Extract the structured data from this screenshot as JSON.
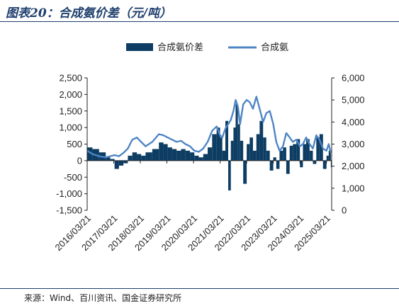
{
  "title": "图表20：合成氨价差（元/吨）",
  "source": "来源：Wind、百川资讯、国金证券研究所",
  "colors": {
    "bar": "#0d3d63",
    "line": "#4f86c6",
    "title": "#1f3f6e",
    "axis": "#222222"
  },
  "chart_data": {
    "type": "bar+line",
    "title": "",
    "legend": {
      "position": "top-center",
      "items": [
        "合成氨价差",
        "合成氨"
      ]
    },
    "left_axis": {
      "ylim": [
        -1500,
        2500
      ],
      "ticks": [
        -1500,
        -1000,
        -500,
        0,
        500,
        1000,
        1500,
        2000,
        2500
      ],
      "tick_labels": [
        "-1,500",
        "-1,000",
        "-500",
        "0",
        "500",
        "1,000",
        "1,500",
        "2,000",
        "2,500"
      ]
    },
    "right_axis": {
      "ylim": [
        0,
        6000
      ],
      "ticks": [
        0,
        1000,
        2000,
        3000,
        4000,
        5000,
        6000
      ],
      "tick_labels": [
        "0",
        "1,000",
        "2,000",
        "3,000",
        "4,000",
        "5,000",
        "6,000"
      ]
    },
    "x_axis": {
      "start": "2016/03/21",
      "end": "2025/05/31",
      "tick_labels": [
        "2016/03/21",
        "2017/03/21",
        "2018/03/21",
        "2019/03/21",
        "2020/03/21",
        "2021/03/21",
        "2022/03/21",
        "2023/03/21",
        "2024/03/21",
        "2025/03/21"
      ]
    },
    "series": [
      {
        "name": "合成氨价差",
        "type": "bar",
        "axis": "left",
        "points": [
          [
            "2016/03/21",
            400
          ],
          [
            "2016/06/01",
            350
          ],
          [
            "2016/09/01",
            250
          ],
          [
            "2016/12/01",
            100
          ],
          [
            "2017/02/01",
            50
          ],
          [
            "2017/04/01",
            -250
          ],
          [
            "2017/06/01",
            -150
          ],
          [
            "2017/08/01",
            -80
          ],
          [
            "2017/10/01",
            150
          ],
          [
            "2017/12/01",
            250
          ],
          [
            "2018/02/01",
            200
          ],
          [
            "2018/04/01",
            150
          ],
          [
            "2018/06/01",
            250
          ],
          [
            "2018/09/01",
            350
          ],
          [
            "2018/12/01",
            550
          ],
          [
            "2019/02/01",
            500
          ],
          [
            "2019/04/01",
            400
          ],
          [
            "2019/06/01",
            350
          ],
          [
            "2019/08/01",
            300
          ],
          [
            "2019/10/01",
            350
          ],
          [
            "2019/12/01",
            300
          ],
          [
            "2020/02/01",
            250
          ],
          [
            "2020/04/01",
            150
          ],
          [
            "2020/06/01",
            100
          ],
          [
            "2020/08/01",
            200
          ],
          [
            "2020/10/01",
            400
          ],
          [
            "2020/12/01",
            800
          ],
          [
            "2021/02/01",
            1000
          ],
          [
            "2021/03/20",
            700
          ],
          [
            "2021/04/20",
            300
          ],
          [
            "2021/06/01",
            1200
          ],
          [
            "2021/07/10",
            -900
          ],
          [
            "2021/08/15",
            600
          ],
          [
            "2021/09/20",
            1000
          ],
          [
            "2021/10/20",
            1700
          ],
          [
            "2021/11/20",
            1100
          ],
          [
            "2021/12/20",
            600
          ],
          [
            "2022/02/01",
            -700
          ],
          [
            "2022/03/21",
            500
          ],
          [
            "2022/05/01",
            700
          ],
          [
            "2022/06/15",
            300
          ],
          [
            "2022/08/01",
            800
          ],
          [
            "2022/09/15",
            1200
          ],
          [
            "2022/11/01",
            700
          ],
          [
            "2022/12/15",
            300
          ],
          [
            "2023/02/01",
            -300
          ],
          [
            "2023/03/21",
            100
          ],
          [
            "2023/05/01",
            -250
          ],
          [
            "2023/06/15",
            300
          ],
          [
            "2023/08/01",
            400
          ],
          [
            "2023/09/15",
            -400
          ],
          [
            "2023/11/01",
            450
          ],
          [
            "2023/12/15",
            500
          ],
          [
            "2024/02/01",
            650
          ],
          [
            "2024/03/21",
            -200
          ],
          [
            "2024/05/01",
            500
          ],
          [
            "2024/06/15",
            650
          ],
          [
            "2024/08/01",
            300
          ],
          [
            "2024/09/15",
            -100
          ],
          [
            "2024/11/01",
            700
          ],
          [
            "2024/12/15",
            800
          ],
          [
            "2025/02/01",
            -250
          ],
          [
            "2025/03/21",
            150
          ],
          [
            "2025/04/20",
            300
          ],
          [
            "2025/05/20",
            -200
          ]
        ]
      },
      {
        "name": "合成氨",
        "type": "line",
        "axis": "right",
        "points": [
          [
            "2016/03/21",
            2700
          ],
          [
            "2016/06/01",
            2550
          ],
          [
            "2016/09/01",
            2450
          ],
          [
            "2016/12/01",
            2400
          ],
          [
            "2017/02/01",
            2450
          ],
          [
            "2017/04/01",
            2500
          ],
          [
            "2017/06/01",
            2450
          ],
          [
            "2017/08/01",
            2600
          ],
          [
            "2017/10/01",
            2800
          ],
          [
            "2017/12/01",
            3200
          ],
          [
            "2018/02/01",
            3300
          ],
          [
            "2018/04/01",
            3100
          ],
          [
            "2018/06/01",
            2900
          ],
          [
            "2018/09/01",
            3100
          ],
          [
            "2018/12/01",
            3450
          ],
          [
            "2019/02/01",
            3400
          ],
          [
            "2019/04/01",
            3300
          ],
          [
            "2019/06/01",
            3200
          ],
          [
            "2019/08/01",
            3100
          ],
          [
            "2019/10/01",
            3150
          ],
          [
            "2019/12/01",
            3000
          ],
          [
            "2020/02/01",
            2900
          ],
          [
            "2020/04/01",
            2700
          ],
          [
            "2020/06/01",
            2650
          ],
          [
            "2020/08/01",
            2800
          ],
          [
            "2020/10/01",
            3100
          ],
          [
            "2020/12/01",
            3600
          ],
          [
            "2021/02/01",
            3800
          ],
          [
            "2021/03/20",
            3400
          ],
          [
            "2021/04/20",
            3300
          ],
          [
            "2021/06/01",
            3700
          ],
          [
            "2021/07/10",
            3900
          ],
          [
            "2021/08/15",
            4100
          ],
          [
            "2021/09/20",
            4500
          ],
          [
            "2021/10/20",
            5000
          ],
          [
            "2021/11/20",
            4700
          ],
          [
            "2021/12/20",
            3900
          ],
          [
            "2022/02/01",
            4800
          ],
          [
            "2022/03/21",
            5000
          ],
          [
            "2022/05/01",
            4900
          ],
          [
            "2022/06/15",
            4600
          ],
          [
            "2022/08/01",
            5150
          ],
          [
            "2022/09/15",
            4600
          ],
          [
            "2022/11/01",
            4000
          ],
          [
            "2022/12/15",
            4400
          ],
          [
            "2023/02/01",
            4500
          ],
          [
            "2023/03/21",
            3900
          ],
          [
            "2023/05/01",
            3100
          ],
          [
            "2023/06/15",
            2700
          ],
          [
            "2023/08/01",
            2900
          ],
          [
            "2023/09/15",
            3500
          ],
          [
            "2023/11/01",
            3300
          ],
          [
            "2023/12/15",
            3100
          ],
          [
            "2024/02/01",
            3200
          ],
          [
            "2024/03/21",
            2900
          ],
          [
            "2024/05/01",
            3000
          ],
          [
            "2024/06/15",
            3300
          ],
          [
            "2024/08/01",
            3000
          ],
          [
            "2024/09/15",
            2800
          ],
          [
            "2024/11/01",
            3400
          ],
          [
            "2024/12/15",
            3200
          ],
          [
            "2025/02/01",
            2800
          ],
          [
            "2025/03/21",
            2700
          ],
          [
            "2025/04/20",
            3000
          ],
          [
            "2025/05/20",
            2600
          ]
        ]
      }
    ]
  }
}
